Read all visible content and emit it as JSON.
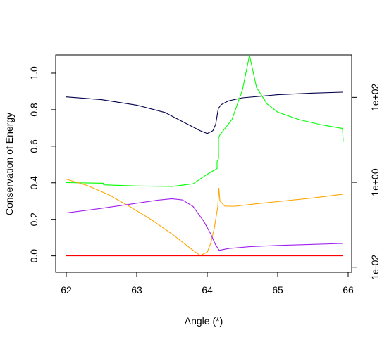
{
  "chart_data": {
    "type": "line",
    "title": "",
    "xlabel": "Angle (*)",
    "ylabel": "Conservation of Energy",
    "xlim": [
      61.85,
      66.05
    ],
    "ylim": [
      -0.09,
      1.1
    ],
    "x_ticks": [
      62,
      63,
      64,
      65,
      66
    ],
    "x_tick_labels": [
      "62",
      "63",
      "64",
      "65",
      "66"
    ],
    "y_ticks": [
      0.0,
      0.2,
      0.4,
      0.6,
      0.8,
      1.0
    ],
    "y_tick_labels": [
      "0.0",
      "0.2",
      "0.4",
      "0.6",
      "0.8",
      "1.0"
    ],
    "secondary_axis": {
      "side": "right",
      "scale": "log",
      "ticks": [
        0.01,
        1,
        100
      ],
      "tick_labels": [
        "1e-02",
        "1e+00",
        "1e+02"
      ],
      "ylim_log10": [
        -2.12,
        3.0
      ]
    },
    "grid": false,
    "legend": "none",
    "series": [
      {
        "color": "#00004b",
        "axis": "left",
        "points": [
          [
            62.0,
            0.87
          ],
          [
            62.5,
            0.855
          ],
          [
            63.0,
            0.825
          ],
          [
            63.4,
            0.785
          ],
          [
            63.7,
            0.725
          ],
          [
            63.9,
            0.685
          ],
          [
            64.0,
            0.67
          ],
          [
            64.08,
            0.685
          ],
          [
            64.12,
            0.72
          ],
          [
            64.15,
            0.79
          ],
          [
            64.16,
            0.808
          ],
          [
            64.2,
            0.828
          ],
          [
            64.3,
            0.848
          ],
          [
            64.5,
            0.865
          ],
          [
            65.0,
            0.882
          ],
          [
            65.5,
            0.891
          ],
          [
            65.92,
            0.896
          ]
        ]
      },
      {
        "color": "#00ff00",
        "axis": "right",
        "points": [
          [
            62.0,
            0.985
          ],
          [
            62.53,
            0.95
          ],
          [
            62.53,
            0.87
          ],
          [
            63.0,
            0.82
          ],
          [
            63.5,
            0.8
          ],
          [
            63.8,
            0.92
          ],
          [
            64.0,
            1.55
          ],
          [
            64.14,
            2.1
          ],
          [
            64.14,
            3.1
          ],
          [
            64.16,
            3.6
          ],
          [
            64.16,
            9.0
          ],
          [
            64.16,
            11.0
          ],
          [
            64.18,
            13.0
          ],
          [
            64.35,
            30.0
          ],
          [
            64.5,
            150.0
          ],
          [
            64.6,
            980.0
          ],
          [
            64.7,
            170.0
          ],
          [
            64.85,
            70.0
          ],
          [
            65.0,
            45.0
          ],
          [
            65.3,
            30.0
          ],
          [
            65.6,
            23.0
          ],
          [
            65.92,
            18.5
          ],
          [
            65.93,
            9.0
          ]
        ]
      },
      {
        "color": "#ffa500",
        "axis": "left",
        "points": [
          [
            62.0,
            0.42
          ],
          [
            62.3,
            0.385
          ],
          [
            62.6,
            0.335
          ],
          [
            62.9,
            0.27
          ],
          [
            63.2,
            0.2
          ],
          [
            63.5,
            0.12
          ],
          [
            63.7,
            0.06
          ],
          [
            63.8,
            0.03
          ],
          [
            63.9,
            0.002
          ],
          [
            64.0,
            0.02
          ],
          [
            64.05,
            0.07
          ],
          [
            64.1,
            0.15
          ],
          [
            64.15,
            0.27
          ],
          [
            64.165,
            0.37
          ],
          [
            64.18,
            0.3
          ],
          [
            64.25,
            0.272
          ],
          [
            64.4,
            0.272
          ],
          [
            64.7,
            0.285
          ],
          [
            65.0,
            0.297
          ],
          [
            65.5,
            0.317
          ],
          [
            65.92,
            0.337
          ]
        ]
      },
      {
        "color": "#a020f0",
        "axis": "left",
        "points": [
          [
            62.0,
            0.235
          ],
          [
            62.5,
            0.26
          ],
          [
            63.0,
            0.288
          ],
          [
            63.3,
            0.305
          ],
          [
            63.5,
            0.313
          ],
          [
            63.65,
            0.306
          ],
          [
            63.8,
            0.27
          ],
          [
            63.95,
            0.19
          ],
          [
            64.05,
            0.12
          ],
          [
            64.12,
            0.06
          ],
          [
            64.17,
            0.03
          ],
          [
            64.3,
            0.04
          ],
          [
            64.6,
            0.05
          ],
          [
            65.0,
            0.057
          ],
          [
            65.5,
            0.063
          ],
          [
            65.92,
            0.068
          ]
        ]
      },
      {
        "color": "#ff0000",
        "axis": "left",
        "points": [
          [
            62.0,
            0.0
          ],
          [
            65.92,
            0.0
          ]
        ]
      }
    ]
  }
}
